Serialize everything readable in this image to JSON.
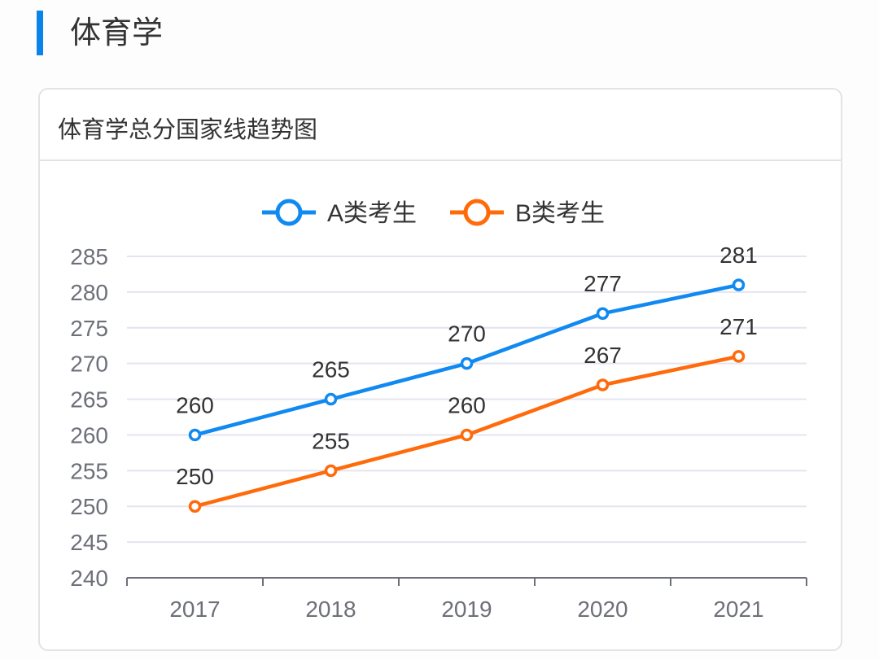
{
  "section": {
    "title": "体育学"
  },
  "card": {
    "title": "体育学总分国家线趋势图"
  },
  "chart_data": {
    "type": "line",
    "title": "体育学总分国家线趋势图",
    "categories": [
      "2017",
      "2018",
      "2019",
      "2020",
      "2021"
    ],
    "series": [
      {
        "name": "A类考生",
        "color": "#1089f0",
        "values": [
          260,
          265,
          270,
          277,
          281
        ]
      },
      {
        "name": "B类考生",
        "color": "#ff6a0a",
        "values": [
          250,
          255,
          260,
          267,
          271
        ]
      }
    ],
    "ylim": [
      240,
      285
    ],
    "yticks": [
      240,
      245,
      250,
      255,
      260,
      265,
      270,
      275,
      280,
      285
    ],
    "grid": true,
    "legend": "top-center",
    "data_labels": true
  }
}
